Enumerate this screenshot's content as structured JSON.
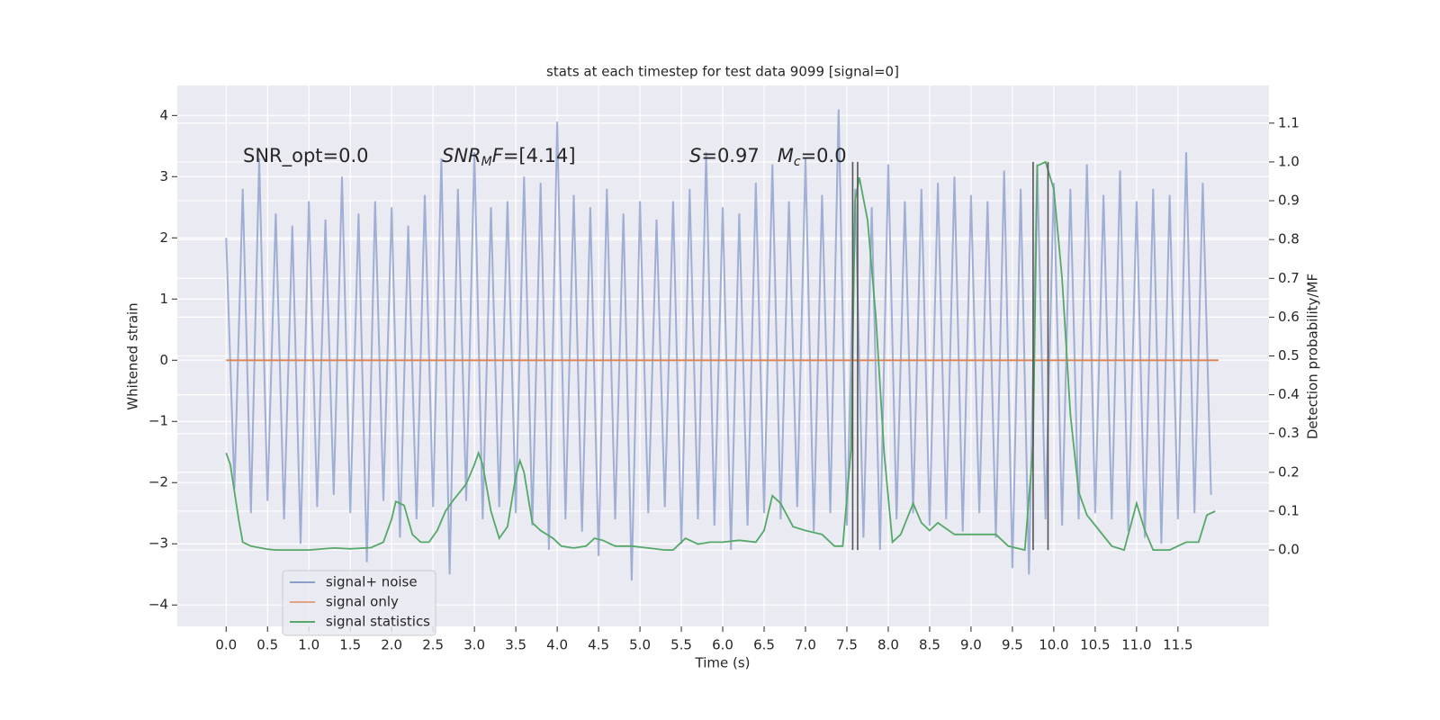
{
  "chart_data": {
    "type": "line",
    "title": "stats at each timestep for test data 9099 [signal=0]",
    "x_label": "Time (s)",
    "y_label": "Whitened strain",
    "y2_label": "Detection probability/MF",
    "xlim": [
      -0.59,
      12.6
    ],
    "ylim": [
      -4.35,
      4.49
    ],
    "y2lim": [
      -0.197,
      1.197
    ],
    "grid": true,
    "legend": "lower left",
    "xticks": [
      {
        "value": 0,
        "label": "0.0"
      },
      0.5,
      {
        "value": 1,
        "label": "1.0"
      },
      1.5,
      {
        "value": 2,
        "label": "2.0"
      },
      2.5,
      {
        "value": 3,
        "label": "3.0"
      },
      3.5,
      {
        "value": 4,
        "label": "4.0"
      },
      4.5,
      {
        "value": 5,
        "label": "5.0"
      },
      5.5,
      {
        "value": 6,
        "label": "6.0"
      },
      6.5,
      {
        "value": 7,
        "label": "7.0"
      },
      7.5,
      {
        "value": 8,
        "label": "8.0"
      },
      8.5,
      {
        "value": 9,
        "label": "9.0"
      },
      9.5,
      {
        "value": 10,
        "label": "10.0"
      },
      10.5,
      {
        "value": 11,
        "label": "11.0"
      },
      11.5
    ],
    "yticks": [
      {
        "value": -4,
        "label": "−4"
      },
      {
        "value": -3,
        "label": "−3"
      },
      {
        "value": -2,
        "label": "−2"
      },
      {
        "value": -1,
        "label": "−1"
      },
      0,
      1,
      2,
      3,
      4
    ],
    "y2ticks": [
      {
        "value": 0,
        "label": "0.0"
      },
      0.1,
      0.2,
      0.3,
      0.4,
      0.5,
      0.6,
      0.7,
      0.8,
      0.9,
      {
        "value": 1,
        "label": "1.0"
      },
      1.1
    ],
    "annotations": [
      [
        {
          "t": "SNR_opt=0.0"
        }
      ],
      [
        {
          "t": "SNR",
          "italic": true
        },
        {
          "t": "M",
          "italic": true,
          "sub": true
        },
        {
          "t": "F",
          "italic": true
        },
        {
          "t": "=[4.14]"
        }
      ],
      [
        {
          "t": "S",
          "italic": true
        },
        {
          "t": "=0.97   "
        },
        {
          "t": "M",
          "italic": true
        },
        {
          "t": "c",
          "italic": true,
          "sub": true
        },
        {
          "t": "=0.0"
        }
      ]
    ],
    "markers": [
      7.57,
      7.63,
      9.75,
      9.93
    ],
    "marker_color": "#555555",
    "series": [
      {
        "name": "signal+ noise",
        "color": "#8c9fcb",
        "x": [
          0,
          0.1,
          0.2,
          0.3,
          0.4,
          0.5,
          0.6,
          0.7,
          0.8,
          0.9,
          1,
          1.1,
          1.2,
          1.3,
          1.4,
          1.5,
          1.6,
          1.7,
          1.8,
          1.9,
          2,
          2.1,
          2.2,
          2.3,
          2.4,
          2.5,
          2.6,
          2.7,
          2.8,
          2.9,
          3,
          3.1,
          3.2,
          3.3,
          3.4,
          3.5,
          3.6,
          3.7,
          3.8,
          3.9,
          4,
          4.1,
          4.2,
          4.3,
          4.4,
          4.5,
          4.6,
          4.7,
          4.8,
          4.9,
          5,
          5.1,
          5.2,
          5.3,
          5.4,
          5.5,
          5.6,
          5.7,
          5.8,
          5.9,
          6,
          6.1,
          6.2,
          6.3,
          6.4,
          6.5,
          6.6,
          6.7,
          6.8,
          6.9,
          7,
          7.1,
          7.2,
          7.3,
          7.4,
          7.5,
          7.6,
          7.7,
          7.8,
          7.9,
          8,
          8.1,
          8.2,
          8.3,
          8.4,
          8.5,
          8.6,
          8.7,
          8.8,
          8.9,
          9,
          9.1,
          9.2,
          9.3,
          9.4,
          9.5,
          9.6,
          9.7,
          9.8,
          9.9,
          10,
          10.1,
          10.2,
          10.3,
          10.4,
          10.5,
          10.6,
          10.7,
          10.8,
          10.9,
          11,
          11.1,
          11.2,
          11.3,
          11.4,
          11.5,
          11.6,
          11.7,
          11.8,
          11.9
        ],
        "values": [
          2.0,
          -2.1,
          2.8,
          -2.5,
          3.3,
          -2.3,
          2.4,
          -2.6,
          2.2,
          -3.0,
          2.6,
          -2.4,
          2.3,
          -2.2,
          3.0,
          -2.5,
          2.4,
          -3.3,
          2.6,
          -2.3,
          2.5,
          -2.9,
          2.2,
          -2.6,
          2.7,
          -2.4,
          3.3,
          -3.5,
          2.8,
          -2.3,
          3.4,
          -2.6,
          2.5,
          -2.4,
          2.6,
          -2.5,
          3.0,
          -2.7,
          2.9,
          -3.1,
          3.9,
          -2.6,
          2.7,
          -2.8,
          2.5,
          -3.2,
          2.8,
          -2.6,
          2.4,
          -3.6,
          2.6,
          -2.5,
          2.3,
          -2.4,
          2.6,
          -3.0,
          2.8,
          -2.6,
          3.4,
          -2.7,
          2.5,
          -3.1,
          2.4,
          -2.7,
          2.9,
          -2.5,
          3.2,
          -2.6,
          2.6,
          -2.4,
          3.3,
          -2.8,
          2.7,
          -2.5,
          4.1,
          -2.7,
          2.8,
          -2.9,
          2.5,
          -3.1,
          3.2,
          -2.6,
          2.6,
          -2.5,
          2.8,
          -2.7,
          2.9,
          -2.6,
          3.0,
          -2.8,
          2.7,
          -2.5,
          2.6,
          -2.9,
          3.1,
          -3.4,
          2.8,
          -3.5,
          3.2,
          -2.6,
          2.9,
          -2.7,
          2.8,
          -2.6,
          3.2,
          -2.5,
          2.7,
          -2.6,
          3.1,
          -2.8,
          2.6,
          -2.9,
          2.8,
          -3.0,
          2.7,
          -2.6,
          3.4,
          -2.5,
          2.9,
          -2.2
        ]
      },
      {
        "name": "signal only",
        "color": "#dd8452",
        "x": [
          0,
          11.99
        ],
        "values": [
          0,
          0
        ]
      },
      {
        "name": "signal statistics",
        "color": "#55a868",
        "axis": "y2",
        "x": [
          0,
          0.05,
          0.1,
          0.15,
          0.2,
          0.3,
          0.5,
          0.6,
          1.0,
          1.3,
          1.5,
          1.75,
          1.9,
          2.0,
          2.05,
          2.15,
          2.25,
          2.35,
          2.45,
          2.55,
          2.65,
          2.75,
          2.9,
          3.0,
          3.05,
          3.1,
          3.2,
          3.3,
          3.4,
          3.5,
          3.55,
          3.6,
          3.7,
          3.8,
          3.95,
          4.05,
          4.2,
          4.35,
          4.45,
          4.55,
          4.7,
          4.9,
          5.1,
          5.3,
          5.4,
          5.55,
          5.7,
          5.85,
          6.0,
          6.2,
          6.4,
          6.5,
          6.6,
          6.7,
          6.85,
          7.0,
          7.2,
          7.35,
          7.45,
          7.55,
          7.6,
          7.65,
          7.75,
          7.85,
          7.95,
          8.05,
          8.15,
          8.3,
          8.4,
          8.5,
          8.6,
          8.8,
          9.0,
          9.15,
          9.3,
          9.45,
          9.65,
          9.75,
          9.8,
          9.9,
          10.0,
          10.1,
          10.2,
          10.3,
          10.4,
          10.55,
          10.7,
          10.85,
          11.0,
          11.1,
          11.2,
          11.4,
          11.6,
          11.75,
          11.85,
          11.95
        ],
        "values": [
          0.25,
          0.22,
          0.15,
          0.08,
          0.02,
          0.01,
          0.002,
          0.0,
          0.0,
          0.005,
          0.003,
          0.006,
          0.02,
          0.08,
          0.125,
          0.115,
          0.04,
          0.02,
          0.02,
          0.05,
          0.1,
          0.13,
          0.17,
          0.22,
          0.25,
          0.22,
          0.1,
          0.03,
          0.06,
          0.19,
          0.23,
          0.2,
          0.07,
          0.05,
          0.03,
          0.01,
          0.005,
          0.01,
          0.03,
          0.025,
          0.01,
          0.01,
          0.005,
          0.0,
          0.0,
          0.03,
          0.015,
          0.02,
          0.02,
          0.025,
          0.02,
          0.05,
          0.14,
          0.12,
          0.06,
          0.05,
          0.04,
          0.01,
          0.01,
          0.26,
          0.9,
          0.96,
          0.85,
          0.6,
          0.25,
          0.02,
          0.04,
          0.12,
          0.07,
          0.05,
          0.07,
          0.04,
          0.04,
          0.04,
          0.04,
          0.01,
          0.0,
          0.27,
          0.99,
          1.0,
          0.93,
          0.7,
          0.35,
          0.15,
          0.09,
          0.05,
          0.01,
          0.0,
          0.12,
          0.05,
          0.0,
          0.0,
          0.02,
          0.02,
          0.09,
          0.1
        ]
      }
    ]
  }
}
